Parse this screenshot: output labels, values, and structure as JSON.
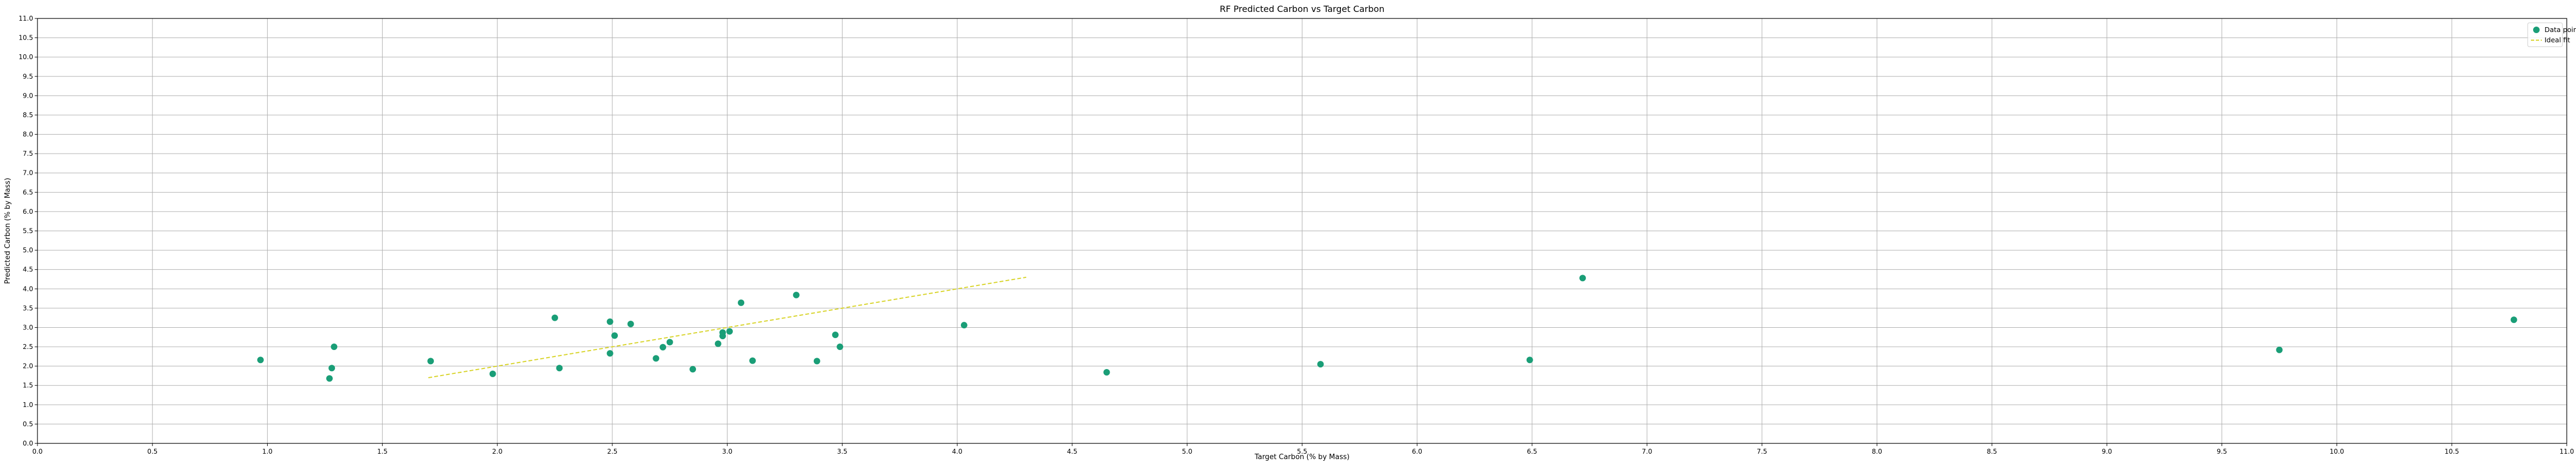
{
  "chart_data": {
    "type": "scatter",
    "title": "RF Predicted Carbon vs Target Carbon",
    "xlabel": "Target Carbon (% by Mass)",
    "ylabel": "Predicted Carbon (% by Mass)",
    "xlim": [
      0.0,
      11.0
    ],
    "ylim": [
      0.0,
      11.0
    ],
    "x_ticks": [
      "0.0",
      "0.5",
      "1.0",
      "1.5",
      "2.0",
      "2.5",
      "3.0",
      "3.5",
      "4.0",
      "4.5",
      "5.0",
      "5.5",
      "6.0",
      "6.5",
      "7.0",
      "7.5",
      "8.0",
      "8.5",
      "9.0",
      "9.5",
      "10.0",
      "10.5",
      "11.0"
    ],
    "y_ticks": [
      "0.0",
      "0.5",
      "1.0",
      "1.5",
      "2.0",
      "2.5",
      "3.0",
      "3.5",
      "4.0",
      "4.5",
      "5.0",
      "5.5",
      "6.0",
      "6.5",
      "7.0",
      "7.5",
      "8.0",
      "8.5",
      "9.0",
      "9.5",
      "10.0",
      "10.5",
      "11.0"
    ],
    "grid": true,
    "legend_position": "top-right",
    "series": [
      {
        "name": "Data points",
        "kind": "scatter",
        "color": "#1a9e77",
        "points": [
          [
            0.97,
            2.16
          ],
          [
            1.27,
            1.68
          ],
          [
            1.28,
            1.95
          ],
          [
            1.29,
            2.5
          ],
          [
            1.71,
            2.13
          ],
          [
            1.98,
            1.8
          ],
          [
            2.25,
            3.25
          ],
          [
            2.27,
            1.95
          ],
          [
            2.49,
            2.33
          ],
          [
            2.49,
            3.15
          ],
          [
            2.51,
            2.79
          ],
          [
            2.58,
            3.09
          ],
          [
            2.69,
            2.2
          ],
          [
            2.72,
            2.49
          ],
          [
            2.75,
            2.62
          ],
          [
            2.85,
            1.92
          ],
          [
            2.96,
            2.58
          ],
          [
            2.98,
            2.78
          ],
          [
            2.98,
            2.87
          ],
          [
            3.01,
            2.9
          ],
          [
            3.06,
            3.64
          ],
          [
            3.11,
            2.14
          ],
          [
            3.3,
            3.84
          ],
          [
            3.39,
            2.13
          ],
          [
            3.47,
            2.81
          ],
          [
            3.49,
            2.5
          ],
          [
            4.03,
            3.06
          ],
          [
            4.65,
            1.84
          ],
          [
            5.58,
            2.05
          ],
          [
            6.49,
            2.16
          ],
          [
            6.72,
            4.28
          ],
          [
            9.75,
            2.42
          ],
          [
            10.77,
            3.2
          ]
        ]
      },
      {
        "name": "Ideal fit",
        "kind": "line",
        "style": "dashed",
        "color": "#d8d42a",
        "points": [
          [
            1.7,
            1.7
          ],
          [
            4.3,
            4.3
          ]
        ]
      }
    ]
  }
}
